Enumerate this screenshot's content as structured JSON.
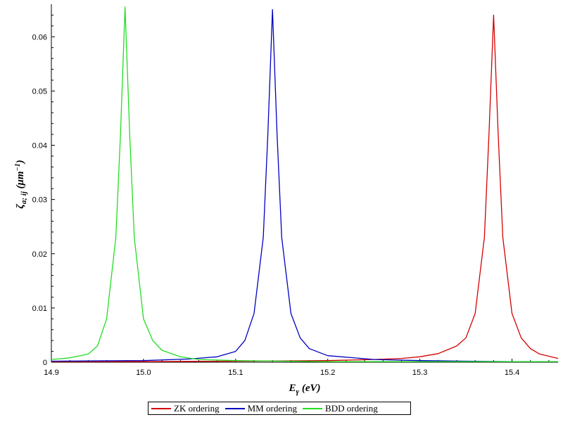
{
  "chart_data": {
    "type": "line",
    "xlabel": "E_γ (eV)",
    "ylabel": "ζ_a;ij (μm⁻¹)",
    "xlim": [
      14.9,
      15.45
    ],
    "ylim": [
      0,
      0.066
    ],
    "x_ticks": [
      "14.9",
      "15.0",
      "15.1",
      "15.2",
      "15.3",
      "15.4"
    ],
    "x_tick_values": [
      14.9,
      15.0,
      15.1,
      15.2,
      15.3,
      15.4
    ],
    "y_ticks": [
      "0",
      "0.01",
      "0.02",
      "0.03",
      "0.04",
      "0.05",
      "0.06"
    ],
    "y_tick_values": [
      0,
      0.01,
      0.02,
      0.03,
      0.04,
      0.05,
      0.06
    ],
    "grid": false,
    "legend_position": "bottom",
    "series": [
      {
        "name": "ZK ordering",
        "color": "#d40000",
        "x": [
          14.9,
          15.0,
          15.1,
          15.2,
          15.25,
          15.28,
          15.3,
          15.32,
          15.34,
          15.35,
          15.36,
          15.37,
          15.375,
          15.38,
          15.385,
          15.39,
          15.4,
          15.41,
          15.42,
          15.43,
          15.45
        ],
        "y": [
          0.0001,
          0.0001,
          0.0002,
          0.0003,
          0.0005,
          0.0007,
          0.001,
          0.0016,
          0.003,
          0.0045,
          0.009,
          0.023,
          0.042,
          0.064,
          0.042,
          0.023,
          0.009,
          0.0045,
          0.0025,
          0.0015,
          0.0007
        ]
      },
      {
        "name": "MM ordering",
        "color": "#0000c0",
        "x": [
          14.9,
          15.0,
          15.05,
          15.08,
          15.1,
          15.11,
          15.12,
          15.13,
          15.135,
          15.14,
          15.145,
          15.15,
          15.16,
          15.17,
          15.18,
          15.2,
          15.25,
          15.3,
          15.35,
          15.4,
          15.45
        ],
        "y": [
          0.0002,
          0.0003,
          0.0006,
          0.001,
          0.002,
          0.004,
          0.009,
          0.023,
          0.042,
          0.065,
          0.042,
          0.023,
          0.009,
          0.0045,
          0.0025,
          0.0012,
          0.0005,
          0.0003,
          0.0002,
          0.0001,
          0.0001
        ]
      },
      {
        "name": "BDD ordering",
        "color": "#22dd22",
        "x": [
          14.9,
          14.92,
          14.94,
          14.95,
          14.96,
          14.97,
          14.975,
          14.98,
          14.985,
          14.99,
          15.0,
          15.01,
          15.02,
          15.04,
          15.06,
          15.1,
          15.2,
          15.3,
          15.4,
          15.45
        ],
        "y": [
          0.0005,
          0.0008,
          0.0015,
          0.003,
          0.008,
          0.023,
          0.042,
          0.0655,
          0.042,
          0.023,
          0.008,
          0.004,
          0.0022,
          0.001,
          0.0005,
          0.0003,
          0.0001,
          0.0001,
          0.0001,
          0.0001
        ]
      }
    ]
  }
}
